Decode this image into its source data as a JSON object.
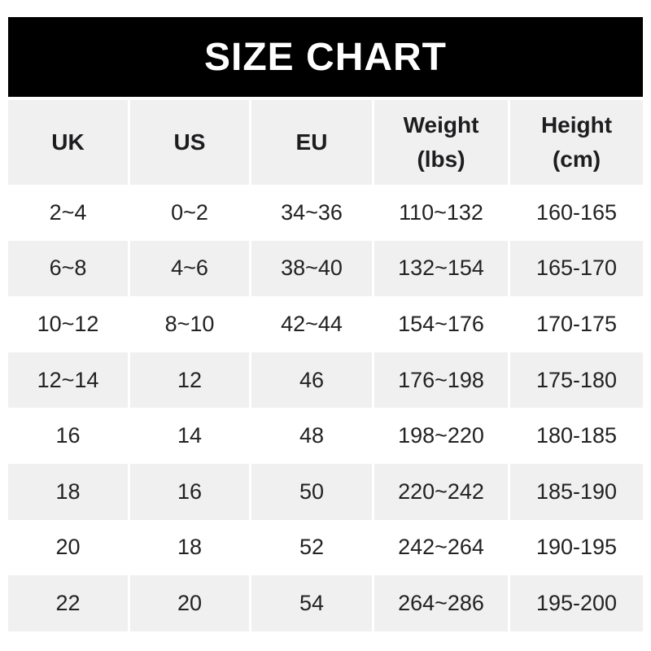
{
  "title": "SIZE CHART",
  "colors": {
    "banner_bg": "#000000",
    "banner_text": "#ffffff",
    "row_alt_bg": "#f0f0f0",
    "text": "#222222",
    "page_bg": "#ffffff"
  },
  "header_display": [
    {
      "label": "UK"
    },
    {
      "label": "US"
    },
    {
      "label": "EU"
    },
    {
      "label": "Weight",
      "sub": "(lbs)"
    },
    {
      "label": "Height",
      "sub": "(cm)"
    }
  ],
  "chart_data": {
    "type": "table",
    "title": "SIZE CHART",
    "columns": [
      "UK",
      "US",
      "EU",
      "Weight (lbs)",
      "Height (cm)"
    ],
    "rows": [
      [
        "2~4",
        "0~2",
        "34~36",
        "110~132",
        "160-165"
      ],
      [
        "6~8",
        "4~6",
        "38~40",
        "132~154",
        "165-170"
      ],
      [
        "10~12",
        "8~10",
        "42~44",
        "154~176",
        "170-175"
      ],
      [
        "12~14",
        "12",
        "46",
        "176~198",
        "175-180"
      ],
      [
        "16",
        "14",
        "48",
        "198~220",
        "180-185"
      ],
      [
        "18",
        "16",
        "50",
        "220~242",
        "185-190"
      ],
      [
        "20",
        "18",
        "52",
        "242~264",
        "190-195"
      ],
      [
        "22",
        "20",
        "54",
        "264~286",
        "195-200"
      ]
    ],
    "layout": {
      "header_background": "#f0f0f0",
      "alternating_rows": "white / #f0f0f0",
      "column_separator": "3px white gap"
    }
  }
}
